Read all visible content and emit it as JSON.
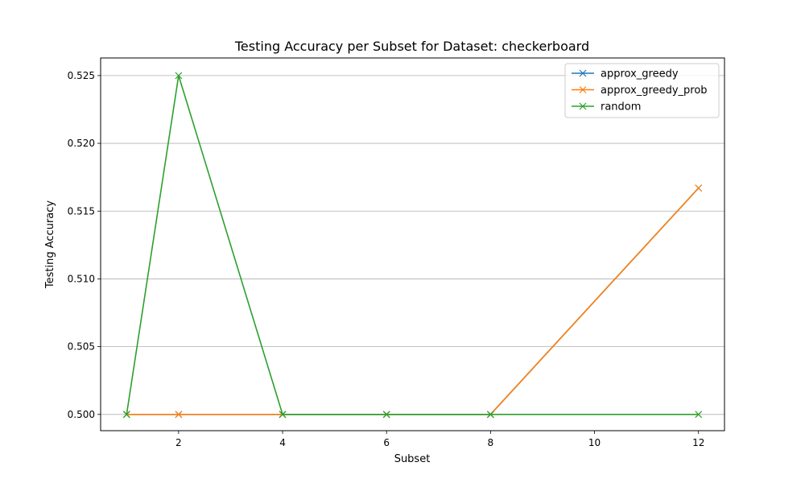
{
  "chart_data": {
    "type": "line",
    "title": "Testing Accuracy per Subset for Dataset: checkerboard",
    "xlabel": "Subset",
    "ylabel": "Testing Accuracy",
    "xlim": [
      0.5,
      12.5
    ],
    "ylim": [
      0.4988,
      0.5263
    ],
    "xticks": [
      2,
      4,
      6,
      8,
      10,
      12
    ],
    "xtick_labels": [
      "2",
      "4",
      "6",
      "8",
      "10",
      "12"
    ],
    "yticks": [
      0.5,
      0.505,
      0.51,
      0.515,
      0.52,
      0.525
    ],
    "ytick_labels": [
      "0.500",
      "0.505",
      "0.510",
      "0.515",
      "0.520",
      "0.525"
    ],
    "grid": "y",
    "legend_position": "top-right",
    "x": [
      1,
      2,
      4,
      6,
      8,
      12
    ],
    "series": [
      {
        "name": "approx_greedy",
        "color": "#1f77b4",
        "marker": "x",
        "values": [
          0.5,
          0.5,
          0.5,
          0.5,
          0.5,
          0.5167
        ]
      },
      {
        "name": "approx_greedy_prob",
        "color": "#ff7f0e",
        "marker": "x",
        "values": [
          0.5,
          0.5,
          0.5,
          0.5,
          0.5,
          0.5167
        ]
      },
      {
        "name": "random",
        "color": "#2ca02c",
        "marker": "x",
        "values": [
          0.5,
          0.525,
          0.5,
          0.5,
          0.5,
          0.5
        ]
      }
    ]
  }
}
